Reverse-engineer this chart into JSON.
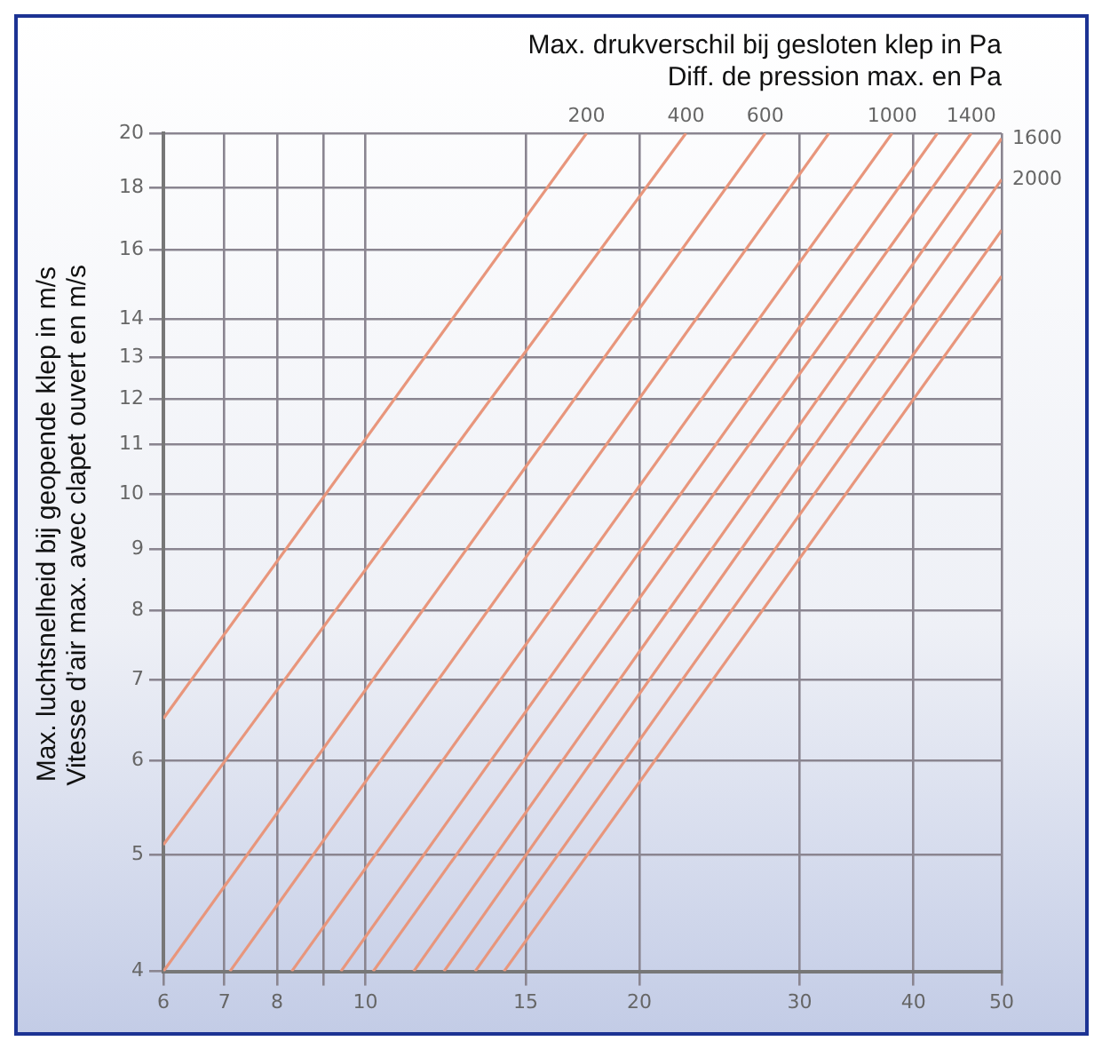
{
  "chart_data": {
    "type": "line",
    "title": "Max. drukverschil bij gesloten klep in Pa",
    "subtitle": "Diff. de pression max. en Pa",
    "ylabel": "Max. luchtsnelheid bij geopende klep in m/s\nVitesse d’air max. avec clapet ouvert en m/s",
    "log": "xy",
    "xlim": [
      6,
      50
    ],
    "ylim": [
      4,
      20
    ],
    "xticks": [
      6,
      7,
      8,
      {
        "value": 9,
        "label": null
      },
      10,
      15,
      20,
      30,
      40,
      50
    ],
    "yticks": [
      4,
      5,
      6,
      7,
      8,
      9,
      10,
      11,
      12,
      13,
      14,
      16,
      18,
      20
    ],
    "grid": true,
    "legend": false,
    "marker": "none",
    "line_style": "solid",
    "series": [
      {
        "name": "200",
        "color": "#e8967c",
        "x": [
          6,
          17.5
        ],
        "values": [
          6.5,
          20
        ]
      },
      {
        "name": "400",
        "color": "#e8967c",
        "x": [
          6,
          22.5
        ],
        "values": [
          5.1,
          20
        ]
      },
      {
        "name": "600",
        "color": "#e8967c",
        "x": [
          6,
          27.5
        ],
        "values": [
          4,
          20
        ]
      },
      {
        "color": "#e8967c",
        "x": [
          7.1,
          32.3
        ],
        "values": [
          4,
          20
        ]
      },
      {
        "name": "1000",
        "color": "#e8967c",
        "x": [
          8.3,
          37.9
        ],
        "values": [
          4,
          20
        ]
      },
      {
        "color": "#e8967c",
        "x": [
          9.4,
          42.5
        ],
        "values": [
          4,
          20
        ]
      },
      {
        "name": "1400",
        "color": "#e8967c",
        "x": [
          10.2,
          46.3
        ],
        "values": [
          4,
          20
        ]
      },
      {
        "name": "1600",
        "color": "#e8967c",
        "x": [
          11.3,
          50
        ],
        "values": [
          4,
          19.8
        ]
      },
      {
        "name": "2000",
        "color": "#e8967c",
        "x": [
          12.2,
          50
        ],
        "values": [
          4,
          18.3
        ]
      },
      {
        "color": "#e8967c",
        "x": [
          13.2,
          50
        ],
        "values": [
          4,
          16.6
        ]
      },
      {
        "color": "#e8967c",
        "x": [
          14.2,
          50
        ],
        "values": [
          4,
          15.2
        ]
      }
    ]
  }
}
